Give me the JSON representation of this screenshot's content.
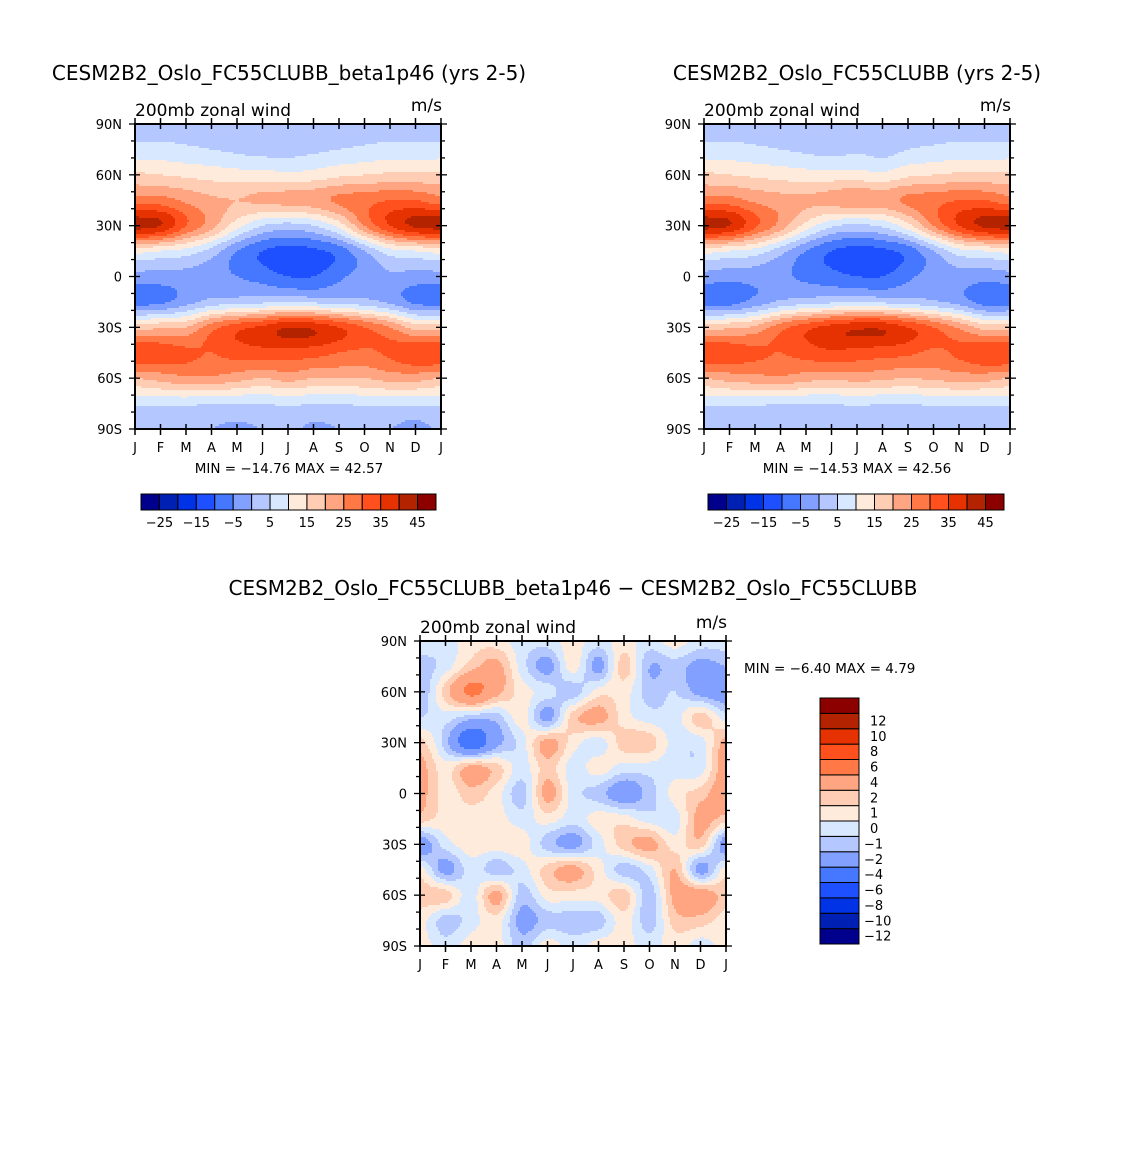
{
  "chart_data": [
    {
      "type": "heatmap",
      "title": "CESM2B2_Oslo_FC55CLUBB_beta1p46 (yrs 2-5)",
      "subtitle": "200mb zonal wind",
      "units": "m/s",
      "xticks": [
        "J",
        "F",
        "M",
        "A",
        "M",
        "J",
        "J",
        "A",
        "S",
        "O",
        "N",
        "D",
        "J"
      ],
      "yticks": [
        "90N",
        "60N",
        "30N",
        "0",
        "30S",
        "60S",
        "90S"
      ],
      "x_range": [
        "Jan",
        "Jan"
      ],
      "y_range": [
        90,
        -90
      ],
      "grid_lats": [
        90,
        75,
        60,
        45,
        30,
        15,
        0,
        -15,
        -30,
        -45,
        -60,
        -75,
        -90
      ],
      "minmax_text": "MIN = −14.76 MAX =   42.57",
      "levels": [
        -25,
        -20,
        -15,
        -10,
        -5,
        0,
        5,
        10,
        15,
        20,
        25,
        30,
        35,
        40,
        45
      ],
      "colorbar_labels": [
        "−25",
        "−15",
        "−5",
        "5",
        "15",
        "25",
        "35",
        "45"
      ],
      "colorbar_orientation": "horizontal",
      "values": [
        [
          2,
          2,
          2,
          2,
          2,
          2,
          2,
          2,
          2,
          2,
          2,
          2,
          2
        ],
        [
          7,
          7,
          6,
          5,
          4,
          3,
          3,
          4,
          5,
          6,
          7,
          7,
          7
        ],
        [
          16,
          15,
          14,
          13,
          12,
          12,
          11,
          12,
          14,
          15,
          16,
          16,
          16
        ],
        [
          27,
          27,
          24,
          21,
          20,
          21,
          22,
          23,
          26,
          28,
          30,
          30,
          27
        ],
        [
          42,
          40,
          30,
          22,
          12,
          5,
          3,
          5,
          12,
          25,
          35,
          41,
          42
        ],
        [
          12,
          10,
          8,
          3,
          -5,
          -10,
          -12,
          -11,
          -8,
          0,
          8,
          10,
          12
        ],
        [
          -2,
          -2,
          -2,
          -3,
          -5,
          -7,
          -10,
          -10,
          -6,
          -3,
          -1,
          -2,
          -2
        ],
        [
          -7,
          -6,
          -2,
          2,
          3,
          4,
          5,
          4,
          3,
          2,
          -1,
          -6,
          -7
        ],
        [
          18,
          19,
          20,
          28,
          33,
          36,
          40,
          39,
          35,
          30,
          25,
          18,
          18
        ],
        [
          35,
          33,
          31,
          30,
          32,
          33,
          33,
          32,
          30,
          29,
          31,
          34,
          35
        ],
        [
          20,
          22,
          24,
          24,
          22,
          20,
          22,
          20,
          20,
          20,
          22,
          22,
          20
        ],
        [
          6,
          6,
          6,
          5,
          5,
          5,
          6,
          5,
          5,
          6,
          6,
          6,
          6
        ],
        [
          1,
          1,
          1,
          0,
          -1,
          0,
          1,
          -1,
          0,
          1,
          0,
          -2,
          1
        ]
      ]
    },
    {
      "type": "heatmap",
      "title": "CESM2B2_Oslo_FC55CLUBB (yrs 2-5)",
      "subtitle": "200mb zonal wind",
      "units": "m/s",
      "xticks": [
        "J",
        "F",
        "M",
        "A",
        "M",
        "J",
        "J",
        "A",
        "S",
        "O",
        "N",
        "D",
        "J"
      ],
      "yticks": [
        "90N",
        "60N",
        "30N",
        "0",
        "30S",
        "60S",
        "90S"
      ],
      "x_range": [
        "Jan",
        "Jan"
      ],
      "y_range": [
        90,
        -90
      ],
      "grid_lats": [
        90,
        75,
        60,
        45,
        30,
        15,
        0,
        -15,
        -30,
        -45,
        -60,
        -75,
        -90
      ],
      "minmax_text": "MIN = −14.53 MAX =   42.56",
      "levels": [
        -25,
        -20,
        -15,
        -10,
        -5,
        0,
        5,
        10,
        15,
        20,
        25,
        30,
        35,
        40,
        45
      ],
      "colorbar_labels": [
        "−25",
        "−15",
        "−5",
        "5",
        "15",
        "25",
        "35",
        "45"
      ],
      "colorbar_orientation": "horizontal",
      "values": [
        [
          2,
          2,
          2,
          2,
          2,
          2,
          1,
          2,
          2,
          2,
          2,
          2,
          2
        ],
        [
          7,
          7,
          6,
          5,
          4,
          3,
          4,
          3,
          5,
          6,
          7,
          7,
          7
        ],
        [
          16,
          15,
          14,
          13,
          12,
          12,
          12,
          11,
          14,
          15,
          16,
          16,
          16
        ],
        [
          27,
          27,
          24,
          22,
          21,
          22,
          24,
          23,
          26,
          28,
          30,
          30,
          27
        ],
        [
          42,
          40,
          31,
          23,
          13,
          6,
          4,
          6,
          13,
          25,
          35,
          41,
          42
        ],
        [
          12,
          10,
          8,
          2,
          -5,
          -10,
          -12,
          -11,
          -8,
          0,
          8,
          10,
          12
        ],
        [
          -2,
          -3,
          -3,
          -4,
          -6,
          -8,
          -10,
          -10,
          -6,
          -3,
          -2,
          -3,
          -2
        ],
        [
          -7,
          -7,
          -3,
          1,
          3,
          4,
          5,
          4,
          3,
          1,
          -2,
          -7,
          -7
        ],
        [
          18,
          19,
          21,
          28,
          33,
          37,
          39,
          39,
          35,
          30,
          24,
          18,
          18
        ],
        [
          35,
          33,
          31,
          30,
          32,
          34,
          33,
          32,
          31,
          29,
          31,
          34,
          35
        ],
        [
          20,
          22,
          23,
          24,
          22,
          21,
          22,
          21,
          20,
          21,
          22,
          22,
          20
        ],
        [
          6,
          6,
          6,
          5,
          5,
          5,
          6,
          5,
          5,
          6,
          6,
          6,
          6
        ],
        [
          1,
          1,
          1,
          1,
          1,
          1,
          1,
          1,
          1,
          1,
          1,
          1,
          1
        ]
      ]
    },
    {
      "type": "heatmap",
      "title": "CESM2B2_Oslo_FC55CLUBB_beta1p46 − CESM2B2_Oslo_FC55CLUBB",
      "subtitle": "200mb zonal wind",
      "units": "m/s",
      "xticks": [
        "J",
        "F",
        "M",
        "A",
        "M",
        "J",
        "J",
        "A",
        "S",
        "O",
        "N",
        "D",
        "J"
      ],
      "yticks": [
        "90N",
        "60N",
        "30N",
        "0",
        "30S",
        "60S",
        "90S"
      ],
      "x_range": [
        "Jan",
        "Jan"
      ],
      "y_range": [
        90,
        -90
      ],
      "grid_lats": [
        90,
        75,
        60,
        45,
        30,
        15,
        0,
        -15,
        -30,
        -45,
        -60,
        -75,
        -90
      ],
      "minmax_text": "MIN =   −6.40  MAX =    4.79",
      "levels": [
        -12,
        -10,
        -8,
        -6,
        -4,
        -2,
        -1,
        0,
        1,
        2,
        4,
        6,
        8,
        10,
        12
      ],
      "colorbar_labels": [
        "−12",
        "−10",
        "−8",
        "−6",
        "−4",
        "−2",
        "−1",
        "0",
        "1",
        "2",
        "4",
        "6",
        "8",
        "10",
        "12"
      ],
      "colorbar_orientation": "vertical",
      "values": [
        [
          -0.5,
          -0.5,
          0.5,
          0.5,
          -0.5,
          -0.5,
          0.5,
          -0.5,
          0.5,
          -0.5,
          0.5,
          -0.5,
          -0.5
        ],
        [
          -1.5,
          -0.5,
          1.5,
          2.5,
          -0.5,
          -2.5,
          0.5,
          -2.5,
          1.5,
          -2,
          -1.5,
          -2.5,
          -2
        ],
        [
          -2,
          1.5,
          4.5,
          2.5,
          0.5,
          -0.5,
          -1.5,
          0.5,
          0.5,
          -1.5,
          -1,
          -2.5,
          -3
        ],
        [
          -1,
          -0.5,
          -1.5,
          -1.5,
          0.5,
          -2.5,
          1.5,
          2.5,
          0.5,
          -0.5,
          -0.5,
          1.5,
          -0.5
        ],
        [
          1.5,
          -1.5,
          -5.5,
          -2.5,
          -0.5,
          2.5,
          0.5,
          -0.5,
          1.5,
          1.5,
          -0.5,
          -0.5,
          2.5
        ],
        [
          2.5,
          0.5,
          2.5,
          1.5,
          -0.5,
          1.5,
          -0.5,
          0.5,
          -0.5,
          -0.5,
          -0.5,
          -0.5,
          3
        ],
        [
          2.5,
          0.5,
          1.5,
          0.5,
          -1.5,
          2.5,
          -0.5,
          -1.5,
          -3,
          -1.5,
          0.5,
          1.5,
          3
        ],
        [
          1.5,
          0.5,
          0.5,
          0.5,
          -0.5,
          0.5,
          -0.5,
          0.5,
          0.5,
          -0.5,
          -0.5,
          2.5,
          1.5
        ],
        [
          -3,
          -0.5,
          0.5,
          0.5,
          0.5,
          -1.5,
          -2.5,
          -0.5,
          1.5,
          2.5,
          0.5,
          1.5,
          -3
        ],
        [
          0.5,
          -2.5,
          -0.5,
          -1.5,
          -0.5,
          1.5,
          2.5,
          0.5,
          -1.5,
          -0.5,
          2,
          -2.5,
          0.5
        ],
        [
          1.5,
          1.5,
          -0.5,
          2.5,
          -1.5,
          0.5,
          0.5,
          0.5,
          1.5,
          -1.5,
          2.5,
          3,
          1.5
        ],
        [
          0.5,
          -1.5,
          -0.5,
          0.5,
          -2.5,
          -1.5,
          -1.5,
          -1.5,
          0.5,
          -1.5,
          1.5,
          1.5,
          0.5
        ],
        [
          0.5,
          -0.5,
          0.5,
          0.5,
          -1.5,
          0.5,
          -0.5,
          0.5,
          0.5,
          -0.5,
          0.5,
          -0.5,
          0.5
        ]
      ]
    }
  ],
  "colors": [
    "#00008c",
    "#0020b4",
    "#0032e6",
    "#1e50ff",
    "#4678ff",
    "#82a0ff",
    "#b4c8ff",
    "#d7e8ff",
    "#ffebdc",
    "#ffcdb4",
    "#ffa582",
    "#ff7846",
    "#ff501e",
    "#e63200",
    "#b42300",
    "#8c0000"
  ]
}
